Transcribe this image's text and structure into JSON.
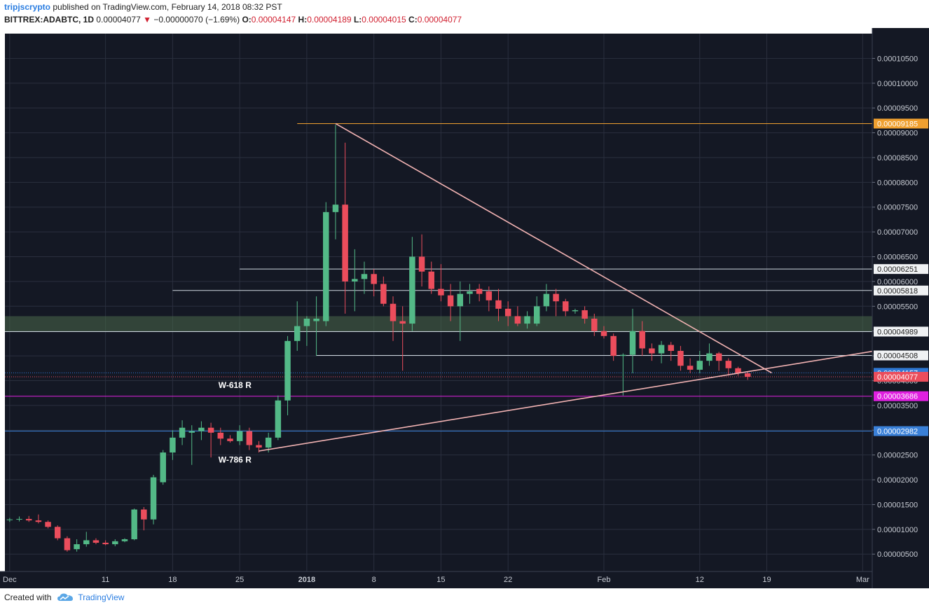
{
  "header": {
    "author": "tripjscrypto",
    "published": "published on TradingView.com, February 14, 2018 08:32 PST",
    "symbol": "BITTREX:ADABTC, 1D",
    "last": "0.00004077",
    "change": "−0.00000070 (−1.69%)",
    "o_label": "O:",
    "o": "0.00004147",
    "h_label": "H:",
    "h": "0.00004189",
    "l_label": "L:",
    "l": "0.00004015",
    "c_label": "C:",
    "c": "0.00004077"
  },
  "footer": {
    "created_with": "Created with",
    "brand": "TradingView",
    "logo_icon": "tradingview-cloud-icon"
  },
  "colors": {
    "background": "#141824",
    "grid": "#2a2f3e",
    "up": "#53b987",
    "down": "#eb4d5c",
    "trendline": "#f2b3b3"
  },
  "chart_data": {
    "type": "candlestick",
    "y_ticks": [
      "0.00000500",
      "0.00001000",
      "0.00001500",
      "0.00002000",
      "0.00002500",
      "0.00003000",
      "0.00003500",
      "0.00004000",
      "0.00004500",
      "0.00005000",
      "0.00005500",
      "0.00006000",
      "0.00006500",
      "0.00007000",
      "0.00007500",
      "0.00008000",
      "0.00008500",
      "0.00009000",
      "0.00009500",
      "0.00010000",
      "0.00010500"
    ],
    "ylim": [
      1.5e-06,
      0.00011
    ],
    "x_ticks": [
      {
        "label": "Dec",
        "day": 0
      },
      {
        "label": "11",
        "day": 10
      },
      {
        "label": "18",
        "day": 17
      },
      {
        "label": "25",
        "day": 24
      },
      {
        "label": "2018",
        "day": 31
      },
      {
        "label": "8",
        "day": 38
      },
      {
        "label": "15",
        "day": 45
      },
      {
        "label": "22",
        "day": 52
      },
      {
        "label": "Feb",
        "day": 62
      },
      {
        "label": "12",
        "day": 72
      },
      {
        "label": "19",
        "day": 79
      },
      {
        "label": "Mar",
        "day": 89
      }
    ],
    "xlim": [
      -0.5,
      90
    ],
    "candles": [
      {
        "day": 0,
        "o": 1.19,
        "h": 1.23,
        "l": 1.15,
        "c": 1.2
      },
      {
        "day": 1,
        "o": 1.2,
        "h": 1.26,
        "l": 1.16,
        "c": 1.21
      },
      {
        "day": 2,
        "o": 1.21,
        "h": 1.27,
        "l": 1.15,
        "c": 1.18
      },
      {
        "day": 3,
        "o": 1.18,
        "h": 1.3,
        "l": 1.12,
        "c": 1.15
      },
      {
        "day": 4,
        "o": 1.15,
        "h": 1.18,
        "l": 1.02,
        "c": 1.05
      },
      {
        "day": 5,
        "o": 1.05,
        "h": 1.08,
        "l": 0.78,
        "c": 0.82
      },
      {
        "day": 6,
        "o": 0.82,
        "h": 0.86,
        "l": 0.55,
        "c": 0.58
      },
      {
        "day": 7,
        "o": 0.6,
        "h": 0.8,
        "l": 0.55,
        "c": 0.7
      },
      {
        "day": 8,
        "o": 0.7,
        "h": 0.95,
        "l": 0.65,
        "c": 0.78
      },
      {
        "day": 9,
        "o": 0.78,
        "h": 0.82,
        "l": 0.7,
        "c": 0.73
      },
      {
        "day": 10,
        "o": 0.73,
        "h": 0.78,
        "l": 0.68,
        "c": 0.7
      },
      {
        "day": 11,
        "o": 0.7,
        "h": 0.8,
        "l": 0.66,
        "c": 0.76
      },
      {
        "day": 12,
        "o": 0.76,
        "h": 0.82,
        "l": 0.74,
        "c": 0.8
      },
      {
        "day": 13,
        "o": 0.8,
        "h": 1.42,
        "l": 0.78,
        "c": 1.4
      },
      {
        "day": 14,
        "o": 1.4,
        "h": 1.45,
        "l": 0.98,
        "c": 1.2
      },
      {
        "day": 15,
        "o": 1.2,
        "h": 2.1,
        "l": 1.1,
        "c": 2.05
      },
      {
        "day": 16,
        "o": 1.95,
        "h": 2.6,
        "l": 1.9,
        "c": 2.55
      },
      {
        "day": 17,
        "o": 2.55,
        "h": 3.0,
        "l": 2.4,
        "c": 2.85
      },
      {
        "day": 18,
        "o": 2.85,
        "h": 3.2,
        "l": 2.7,
        "c": 3.05
      },
      {
        "day": 19,
        "o": 2.95,
        "h": 3.1,
        "l": 2.3,
        "c": 2.98
      },
      {
        "day": 20,
        "o": 2.98,
        "h": 3.18,
        "l": 2.8,
        "c": 3.05
      },
      {
        "day": 21,
        "o": 3.05,
        "h": 3.15,
        "l": 2.45,
        "c": 2.95
      },
      {
        "day": 22,
        "o": 2.95,
        "h": 3.05,
        "l": 2.7,
        "c": 2.83
      },
      {
        "day": 23,
        "o": 2.83,
        "h": 2.9,
        "l": 2.75,
        "c": 2.78
      },
      {
        "day": 24,
        "o": 2.78,
        "h": 3.1,
        "l": 2.7,
        "c": 2.98
      },
      {
        "day": 25,
        "o": 2.98,
        "h": 3.05,
        "l": 2.6,
        "c": 2.7
      },
      {
        "day": 26,
        "o": 2.7,
        "h": 2.78,
        "l": 2.55,
        "c": 2.65
      },
      {
        "day": 27,
        "o": 2.65,
        "h": 2.95,
        "l": 2.55,
        "c": 2.85
      },
      {
        "day": 28,
        "o": 2.85,
        "h": 3.7,
        "l": 2.8,
        "c": 3.6
      },
      {
        "day": 29,
        "o": 3.6,
        "h": 4.9,
        "l": 3.3,
        "c": 4.8
      },
      {
        "day": 30,
        "o": 4.8,
        "h": 5.6,
        "l": 4.6,
        "c": 5.1
      },
      {
        "day": 31,
        "o": 5.1,
        "h": 5.3,
        "l": 4.7,
        "c": 5.25
      },
      {
        "day": 32,
        "o": 5.2,
        "h": 5.7,
        "l": 4.5,
        "c": 5.25
      },
      {
        "day": 33,
        "o": 5.2,
        "h": 7.6,
        "l": 5.1,
        "c": 7.4
      },
      {
        "day": 34,
        "o": 7.4,
        "h": 9.16,
        "l": 6.85,
        "c": 7.55
      },
      {
        "day": 35,
        "o": 7.55,
        "h": 8.8,
        "l": 5.35,
        "c": 6.0
      },
      {
        "day": 36,
        "o": 6.0,
        "h": 6.65,
        "l": 5.4,
        "c": 6.05
      },
      {
        "day": 37,
        "o": 6.05,
        "h": 6.4,
        "l": 5.75,
        "c": 6.15
      },
      {
        "day": 38,
        "o": 6.15,
        "h": 6.25,
        "l": 5.7,
        "c": 5.95
      },
      {
        "day": 39,
        "o": 5.95,
        "h": 6.1,
        "l": 5.5,
        "c": 5.55
      },
      {
        "day": 40,
        "o": 5.55,
        "h": 5.7,
        "l": 4.8,
        "c": 5.2
      },
      {
        "day": 41,
        "o": 5.2,
        "h": 5.5,
        "l": 4.2,
        "c": 5.15
      },
      {
        "day": 42,
        "o": 5.15,
        "h": 6.9,
        "l": 5.0,
        "c": 6.5
      },
      {
        "day": 43,
        "o": 6.5,
        "h": 6.95,
        "l": 5.9,
        "c": 6.2
      },
      {
        "day": 44,
        "o": 6.2,
        "h": 6.4,
        "l": 5.75,
        "c": 5.85
      },
      {
        "day": 45,
        "o": 5.85,
        "h": 6.35,
        "l": 5.6,
        "c": 5.72
      },
      {
        "day": 46,
        "o": 5.72,
        "h": 5.95,
        "l": 5.2,
        "c": 5.5
      },
      {
        "day": 47,
        "o": 5.5,
        "h": 6.0,
        "l": 4.8,
        "c": 5.75
      },
      {
        "day": 48,
        "o": 5.75,
        "h": 5.95,
        "l": 5.55,
        "c": 5.8
      },
      {
        "day": 49,
        "o": 5.85,
        "h": 5.95,
        "l": 5.6,
        "c": 5.75
      },
      {
        "day": 50,
        "o": 5.8,
        "h": 5.9,
        "l": 5.4,
        "c": 5.62
      },
      {
        "day": 51,
        "o": 5.62,
        "h": 5.85,
        "l": 5.2,
        "c": 5.45
      },
      {
        "day": 52,
        "o": 5.45,
        "h": 5.6,
        "l": 5.1,
        "c": 5.3
      },
      {
        "day": 53,
        "o": 5.3,
        "h": 5.5,
        "l": 5.1,
        "c": 5.15
      },
      {
        "day": 54,
        "o": 5.15,
        "h": 5.4,
        "l": 5.05,
        "c": 5.3
      },
      {
        "day": 55,
        "o": 5.15,
        "h": 5.7,
        "l": 5.1,
        "c": 5.5
      },
      {
        "day": 56,
        "o": 5.5,
        "h": 5.95,
        "l": 5.4,
        "c": 5.75
      },
      {
        "day": 57,
        "o": 5.75,
        "h": 5.85,
        "l": 5.3,
        "c": 5.6
      },
      {
        "day": 58,
        "o": 5.6,
        "h": 5.65,
        "l": 5.3,
        "c": 5.4
      },
      {
        "day": 59,
        "o": 5.4,
        "h": 5.45,
        "l": 5.35,
        "c": 5.42
      },
      {
        "day": 60,
        "o": 5.42,
        "h": 5.5,
        "l": 5.15,
        "c": 5.25
      },
      {
        "day": 61,
        "o": 5.25,
        "h": 5.35,
        "l": 4.9,
        "c": 5.0
      },
      {
        "day": 62,
        "o": 5.0,
        "h": 5.1,
        "l": 4.85,
        "c": 4.9
      },
      {
        "day": 63,
        "o": 4.9,
        "h": 4.95,
        "l": 4.4,
        "c": 4.5
      },
      {
        "day": 64,
        "o": 4.5,
        "h": 4.55,
        "l": 3.7,
        "c": 4.52
      },
      {
        "day": 65,
        "o": 4.52,
        "h": 5.45,
        "l": 4.15,
        "c": 5.0
      },
      {
        "day": 66,
        "o": 5.0,
        "h": 5.2,
        "l": 4.5,
        "c": 4.65
      },
      {
        "day": 67,
        "o": 4.65,
        "h": 4.75,
        "l": 4.4,
        "c": 4.55
      },
      {
        "day": 68,
        "o": 4.55,
        "h": 4.8,
        "l": 4.35,
        "c": 4.72
      },
      {
        "day": 69,
        "o": 4.72,
        "h": 4.78,
        "l": 4.4,
        "c": 4.6
      },
      {
        "day": 70,
        "o": 4.6,
        "h": 4.7,
        "l": 4.2,
        "c": 4.3
      },
      {
        "day": 71,
        "o": 4.3,
        "h": 4.45,
        "l": 4.15,
        "c": 4.22
      },
      {
        "day": 72,
        "o": 4.22,
        "h": 4.6,
        "l": 4.15,
        "c": 4.4
      },
      {
        "day": 73,
        "o": 4.4,
        "h": 4.75,
        "l": 4.3,
        "c": 4.55
      },
      {
        "day": 74,
        "o": 4.55,
        "h": 4.58,
        "l": 4.2,
        "c": 4.4
      },
      {
        "day": 75,
        "o": 4.4,
        "h": 4.45,
        "l": 4.1,
        "c": 4.25
      },
      {
        "day": 76,
        "o": 4.25,
        "h": 4.28,
        "l": 4.1,
        "c": 4.15
      },
      {
        "day": 77,
        "o": 4.147,
        "h": 4.189,
        "l": 4.015,
        "c": 4.077
      }
    ],
    "candle_unit": 1e-05,
    "horizontal_levels": [
      {
        "price": 9.185e-05,
        "label": "0.00009185",
        "color": "#f0a030",
        "from_day": 30
      },
      {
        "price": 6.251e-05,
        "label": "0.00006251",
        "color": "#cfd8e0",
        "from_day": 24
      },
      {
        "price": 5.818e-05,
        "label": "0.00005818",
        "color": "#cfd8e0",
        "from_day": 17
      },
      {
        "price": 4.989e-05,
        "label": "0.00004989",
        "color": "#cfd8e0",
        "from_day": -0.5
      },
      {
        "price": 4.508e-05,
        "label": "0.00004508",
        "color": "#cfd8e0",
        "from_day": 32
      },
      {
        "price": 4.157e-05,
        "label": "0.00004157",
        "color": "#2f78d4",
        "from_day": -0.5,
        "dotted": true
      },
      {
        "price": 4.077e-05,
        "label": "0.00004077",
        "color": "#eb4d5c",
        "from_day": -0.5,
        "dotted": true
      },
      {
        "price": 3.686e-05,
        "label": "0.00003686",
        "color": "#e020e0",
        "from_day": -0.5
      },
      {
        "price": 2.982e-05,
        "label": "0.00002982",
        "color": "#3a80d8",
        "from_day": -0.5
      }
    ],
    "zone": {
      "from": 4.989e-05,
      "to": 5.3e-05
    },
    "trendlines": [
      {
        "day1": 34,
        "p1": 9.185e-05,
        "day2": 79.5,
        "p2": 4.157e-05
      },
      {
        "day1": 26,
        "p1": 2.58e-05,
        "day2": 90,
        "p2": 4.59e-05
      }
    ],
    "annotations": [
      {
        "text": "W-618 R",
        "day": 23.5,
        "price": 3.85e-05
      },
      {
        "text": "W-786 R",
        "day": 23.5,
        "price": 2.35e-05
      }
    ]
  }
}
